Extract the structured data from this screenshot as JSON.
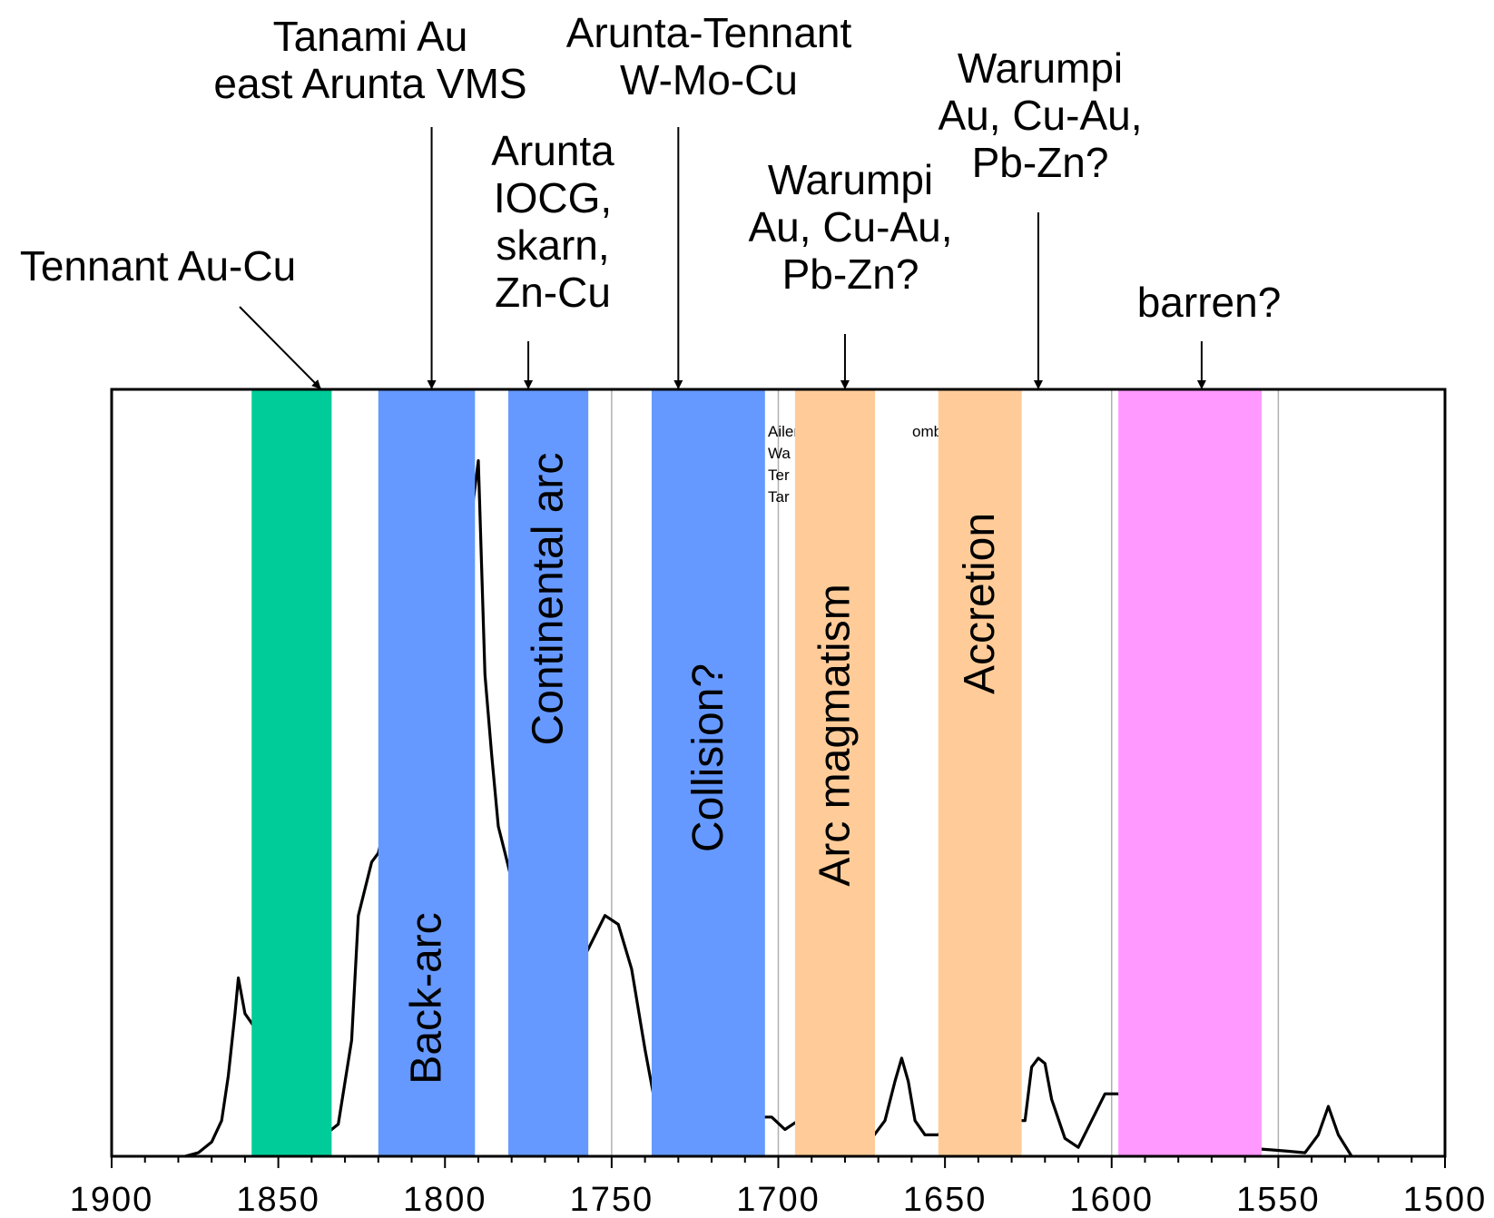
{
  "chart_data": {
    "type": "area",
    "title": "",
    "xlabel": "",
    "ylabel": "",
    "xlim": [
      1900,
      1500
    ],
    "x_reversed": true,
    "x_ticks": [
      1900,
      1850,
      1800,
      1750,
      1700,
      1650,
      1600,
      1550,
      1500
    ],
    "grid_lines_x": [
      1750,
      1700,
      1600,
      1550
    ],
    "y_axis_shown": false,
    "legend_fragments": [
      "Ailer",
      "ombine",
      "Wa",
      "Ter",
      "Tar"
    ],
    "series": [
      {
        "color": "#000000",
        "points": [
          [
            1878,
            0.0
          ],
          [
            1874,
            0.02
          ],
          [
            1870,
            0.08
          ],
          [
            1867,
            0.2
          ],
          [
            1865,
            0.45
          ],
          [
            1863,
            0.8
          ],
          [
            1862,
            1.0
          ],
          [
            1860,
            0.8
          ],
          [
            1857,
            0.72
          ],
          [
            1855,
            0.75
          ],
          [
            1852,
            0.72
          ],
          [
            1840,
            0.3
          ],
          [
            1836,
            0.12
          ],
          [
            1832,
            0.18
          ],
          [
            1828,
            0.65
          ],
          [
            1826,
            1.35
          ],
          [
            1822,
            1.65
          ],
          [
            1820,
            1.7
          ],
          [
            1818,
            1.85
          ],
          [
            1814,
            2.0
          ],
          [
            1810,
            2.2
          ],
          [
            1805,
            2.8
          ],
          [
            1800,
            3.2
          ],
          [
            1796,
            3.3
          ],
          [
            1792,
            3.6
          ],
          [
            1790,
            3.9
          ],
          [
            1788,
            2.7
          ],
          [
            1786,
            2.25
          ],
          [
            1784,
            1.85
          ],
          [
            1782,
            1.7
          ],
          [
            1780,
            1.55
          ],
          [
            1775,
            1.2
          ],
          [
            1770,
            1.0
          ],
          [
            1765,
            0.95
          ],
          [
            1760,
            1.05
          ],
          [
            1756,
            1.2
          ],
          [
            1752,
            1.35
          ],
          [
            1748,
            1.3
          ],
          [
            1744,
            1.05
          ],
          [
            1740,
            0.6
          ],
          [
            1737,
            0.3
          ],
          [
            1734,
            0.2
          ],
          [
            1730,
            0.3
          ],
          [
            1726,
            0.55
          ],
          [
            1722,
            0.7
          ],
          [
            1718,
            0.55
          ],
          [
            1714,
            0.4
          ],
          [
            1710,
            0.3
          ],
          [
            1706,
            0.22
          ],
          [
            1702,
            0.22
          ],
          [
            1698,
            0.15
          ],
          [
            1694,
            0.2
          ],
          [
            1690,
            0.3
          ],
          [
            1680,
            0.25
          ],
          [
            1672,
            0.1
          ],
          [
            1668,
            0.2
          ],
          [
            1665,
            0.42
          ],
          [
            1663,
            0.55
          ],
          [
            1661,
            0.42
          ],
          [
            1659,
            0.2
          ],
          [
            1656,
            0.12
          ],
          [
            1652,
            0.12
          ],
          [
            1648,
            0.2
          ],
          [
            1642,
            0.3
          ],
          [
            1634,
            0.2
          ],
          [
            1626,
            0.2
          ],
          [
            1624,
            0.5
          ],
          [
            1622,
            0.55
          ],
          [
            1620,
            0.52
          ],
          [
            1618,
            0.32
          ],
          [
            1614,
            0.1
          ],
          [
            1610,
            0.05
          ],
          [
            1606,
            0.2
          ],
          [
            1602,
            0.35
          ],
          [
            1598,
            0.35
          ],
          [
            1590,
            0.25
          ],
          [
            1580,
            0.15
          ],
          [
            1570,
            0.1
          ],
          [
            1560,
            0.06
          ],
          [
            1555,
            0.04
          ],
          [
            1548,
            0.03
          ],
          [
            1542,
            0.02
          ],
          [
            1538,
            0.12
          ],
          [
            1535,
            0.28
          ],
          [
            1532,
            0.12
          ],
          [
            1528,
            0.0
          ]
        ]
      }
    ],
    "bands": [
      {
        "x0": 1858,
        "x1": 1834,
        "color": "#00CC99",
        "label": ""
      },
      {
        "x0": 1820,
        "x1": 1791,
        "color": "#6699FF",
        "label": "Back-arc"
      },
      {
        "x0": 1781,
        "x1": 1757,
        "color": "#6699FF",
        "label": "Continental arc"
      },
      {
        "x0": 1738,
        "x1": 1704,
        "color": "#6699FF",
        "label": "Collision?"
      },
      {
        "x0": 1695,
        "x1": 1671,
        "color": "#FFCC99",
        "label": "Arc magmatism"
      },
      {
        "x0": 1652,
        "x1": 1627,
        "color": "#FFCC99",
        "label": "Accretion"
      },
      {
        "x0": 1598,
        "x1": 1555,
        "color": "#FF99FF",
        "label": ""
      }
    ],
    "annotations": [
      {
        "lines": [
          "Tennant Au-Cu"
        ],
        "x": 1835,
        "arrow": "diagonal"
      },
      {
        "lines": [
          "Tanami Au",
          "east Arunta VMS"
        ],
        "x": 1804,
        "arrow": "vertical"
      },
      {
        "lines": [
          "Arunta",
          "IOCG,",
          "skarn,",
          "Zn-Cu"
        ],
        "x": 1775,
        "arrow": "vertical"
      },
      {
        "lines": [
          "Arunta-Tennant",
          "W-Mo-Cu"
        ],
        "x": 1730,
        "arrow": "vertical"
      },
      {
        "lines": [
          "Warumpi",
          "Au, Cu-Au,",
          "Pb-Zn?"
        ],
        "x": 1680,
        "arrow": "vertical"
      },
      {
        "lines": [
          "Warumpi",
          "Au, Cu-Au,",
          "Pb-Zn?"
        ],
        "x": 1622,
        "arrow": "vertical"
      },
      {
        "lines": [
          "barren?"
        ],
        "x": 1573,
        "arrow": "vertical"
      }
    ]
  }
}
